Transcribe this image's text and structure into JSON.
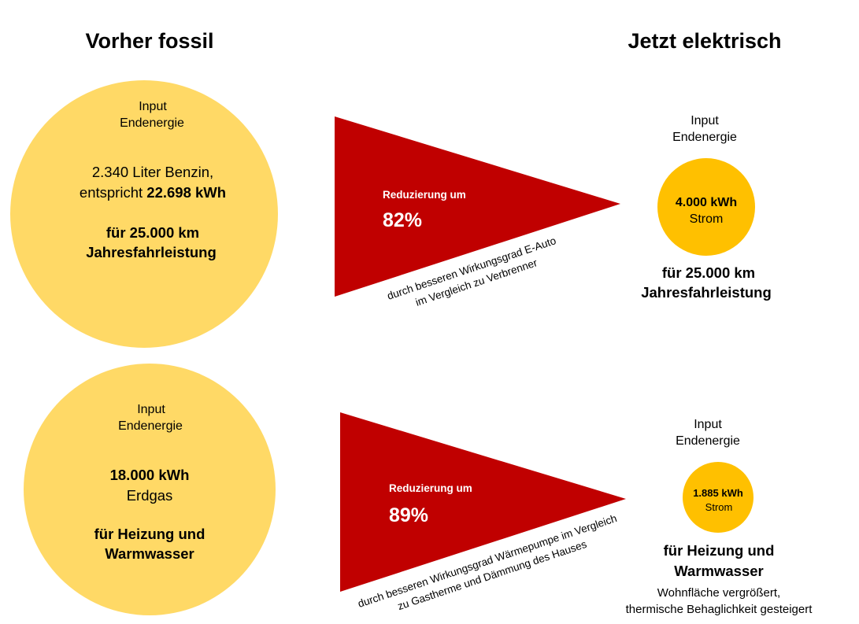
{
  "colors": {
    "fossil_circle": "#FFD966",
    "electric_circle": "#FFC000",
    "reduction_triangle": "#C00000"
  },
  "headings": {
    "before": "Vorher fossil",
    "after": "Jetzt elektrisch"
  },
  "mobility": {
    "before": {
      "input_label": [
        "Input",
        "Endenergie"
      ],
      "amount": "2.340 Liter Benzin,",
      "equivalent_prefix": "entspricht",
      "equivalent_value": "22.698 kWh",
      "purpose": [
        "für 25.000 km",
        "Jahresfahrleistung"
      ]
    },
    "reduction": {
      "label": "Reduzierung um",
      "percent": "82%",
      "reason": [
        "durch besseren Wirkungsgrad E-Auto",
        "im Vergleich zu Verbrenner"
      ]
    },
    "after": {
      "input_label": [
        "Input",
        "Endenergie"
      ],
      "amount": "4.000 kWh",
      "carrier": "Strom",
      "purpose": [
        "für 25.000 km",
        "Jahresfahrleistung"
      ]
    }
  },
  "heating": {
    "before": {
      "input_label": [
        "Input",
        "Endenergie"
      ],
      "amount": "18.000 kWh",
      "carrier": "Erdgas",
      "purpose": [
        "für Heizung und",
        "Warmwasser"
      ]
    },
    "reduction": {
      "label": "Reduzierung um",
      "percent": "89%",
      "reason": [
        "durch besseren Wirkungsgrad Wärmepumpe im Vergleich",
        "zu Gastherme und Dämmung des Hauses"
      ]
    },
    "after": {
      "input_label": [
        "Input",
        "Endenergie"
      ],
      "amount": "1.885 kWh",
      "carrier": "Strom",
      "purpose": [
        "für Heizung und",
        "Warmwasser"
      ],
      "notes": [
        "Wohnfläche vergrößert,",
        "thermische Behaglichkeit gesteigert"
      ]
    }
  }
}
